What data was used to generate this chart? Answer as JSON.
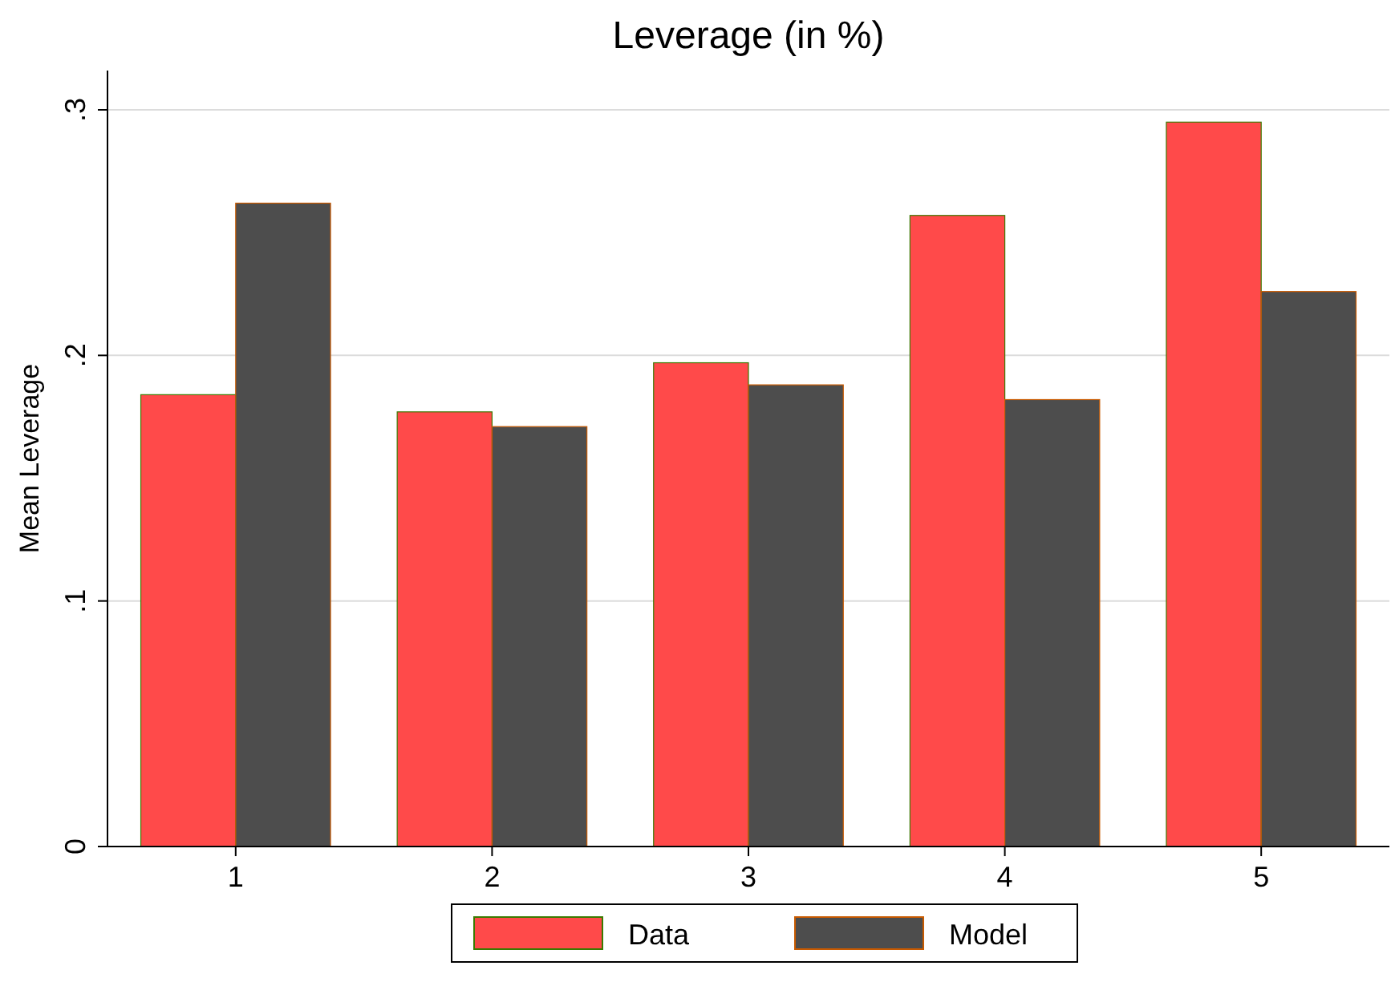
{
  "chart_data": {
    "type": "bar",
    "title": "Leverage (in %)",
    "ylabel": "Mean Leverage",
    "categories": [
      "1",
      "2",
      "3",
      "4",
      "5"
    ],
    "series": [
      {
        "name": "Data",
        "color": "#ff4a4a",
        "values": [
          0.184,
          0.177,
          0.197,
          0.257,
          0.295
        ]
      },
      {
        "name": "Model",
        "color": "#4d4d4d",
        "values": [
          0.262,
          0.171,
          0.188,
          0.182,
          0.226
        ]
      }
    ],
    "ylim": [
      0,
      0.316
    ],
    "yticks": [
      {
        "value": 0,
        "label": "0"
      },
      {
        "value": 0.1,
        "label": ".1"
      },
      {
        "value": 0.2,
        "label": ".2"
      },
      {
        "value": 0.3,
        "label": ".3"
      }
    ],
    "grid": "y",
    "legend": "bottom"
  }
}
